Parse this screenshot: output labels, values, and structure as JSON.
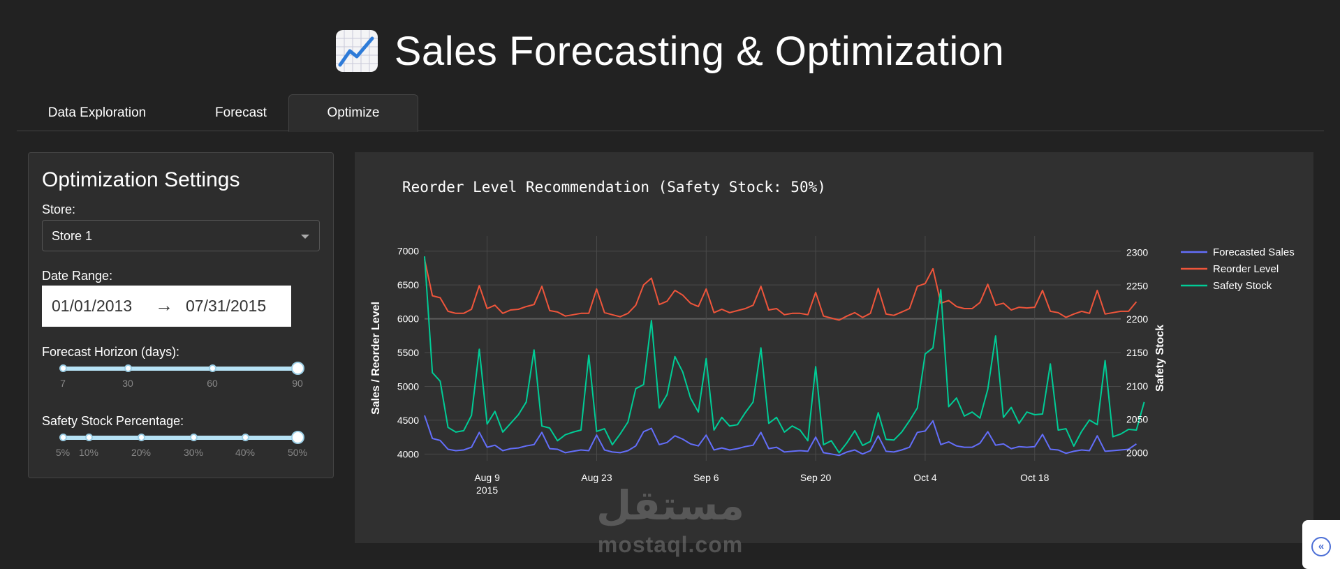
{
  "app": {
    "title": "Sales Forecasting & Optimization",
    "title_icon": "chart-increasing-emoji"
  },
  "tabs": [
    {
      "label": "Data Exploration",
      "active": false
    },
    {
      "label": "Forecast",
      "active": false
    },
    {
      "label": "Optimize",
      "active": true
    }
  ],
  "settings": {
    "title": "Optimization Settings",
    "store_label": "Store:",
    "store_value": "Store 1",
    "date_range_label": "Date Range:",
    "date_start": "01/01/2013",
    "date_arrow": "→",
    "date_end": "07/31/2015",
    "horizon_label": "Forecast Horizon (days):",
    "horizon_marks": [
      "7",
      "30",
      "60",
      "90"
    ],
    "horizon_value": "90",
    "safety_label": "Safety Stock Percentage:",
    "safety_marks": [
      "5%",
      "10%",
      "20%",
      "30%",
      "40%",
      "50%"
    ],
    "safety_value": "50%"
  },
  "colors": {
    "background": "#222222",
    "card": "#303030",
    "forecast": "#636efa",
    "reorder": "#ef553b",
    "safety": "#00cc96",
    "slider": "#b6e2f5"
  },
  "watermark": {
    "arabic": "مستقل",
    "latin": "mostaql.com"
  },
  "chart_data": {
    "type": "line",
    "title": "Reorder Level Recommendation (Safety Stock: 50%)",
    "ylabel": "Sales / Reorder Level",
    "y2label": "Safety Stock",
    "ylim": [
      3900,
      7100
    ],
    "y2lim": [
      1988,
      2312
    ],
    "yticks": [
      4000,
      4500,
      5000,
      5500,
      6000,
      6500,
      7000
    ],
    "y2ticks": [
      2000,
      2050,
      2100,
      2150,
      2200,
      2250,
      2300
    ],
    "xrange": [
      0,
      89
    ],
    "xticks": [
      {
        "pos": 8,
        "label": "Aug 9",
        "sub": "2015"
      },
      {
        "pos": 22,
        "label": "Aug 23",
        "sub": ""
      },
      {
        "pos": 36,
        "label": "Sep 6",
        "sub": ""
      },
      {
        "pos": 50,
        "label": "Sep 20",
        "sub": ""
      },
      {
        "pos": 64,
        "label": "Oct 4",
        "sub": ""
      },
      {
        "pos": 78,
        "label": "Oct 18",
        "sub": ""
      }
    ],
    "legend_position": "top-right",
    "series": [
      {
        "name": "Forecasted Sales",
        "axis": "y",
        "values": [
          4570,
          4230,
          4200,
          4070,
          4050,
          4060,
          4100,
          4320,
          4100,
          4130,
          4050,
          4080,
          4090,
          4120,
          4140,
          4320,
          4080,
          4070,
          4020,
          4040,
          4060,
          4050,
          4280,
          4060,
          4030,
          4020,
          4050,
          4120,
          4330,
          4380,
          4140,
          4170,
          4270,
          4220,
          4150,
          4120,
          4280,
          4060,
          4090,
          4060,
          4080,
          4110,
          4130,
          4320,
          4080,
          4100,
          4030,
          4040,
          4050,
          4040,
          4250,
          4020,
          4000,
          3980,
          4030,
          4060,
          4000,
          4050,
          4270,
          4040,
          4030,
          4060,
          4100,
          4320,
          4340,
          4490,
          4140,
          4180,
          4120,
          4100,
          4100,
          4160,
          4330,
          4130,
          4150,
          4080,
          4110,
          4100,
          4110,
          4290,
          4070,
          4060,
          4010,
          4040,
          4060,
          4050,
          4270,
          4040,
          4050,
          4060,
          4070,
          4150
        ]
      },
      {
        "name": "Reorder Level",
        "axis": "y",
        "values": [
          6880,
          6340,
          6310,
          6110,
          6080,
          6080,
          6140,
          6490,
          6150,
          6200,
          6080,
          6130,
          6140,
          6180,
          6210,
          6480,
          6120,
          6100,
          6040,
          6060,
          6080,
          6080,
          6440,
          6090,
          6060,
          6030,
          6080,
          6200,
          6500,
          6600,
          6210,
          6260,
          6420,
          6350,
          6230,
          6180,
          6440,
          6090,
          6140,
          6090,
          6120,
          6150,
          6200,
          6480,
          6130,
          6150,
          6060,
          6080,
          6080,
          6060,
          6390,
          6040,
          6010,
          5980,
          6040,
          6090,
          6020,
          6080,
          6450,
          6070,
          6050,
          6100,
          6150,
          6480,
          6520,
          6740,
          6230,
          6270,
          6180,
          6150,
          6150,
          6240,
          6510,
          6200,
          6230,
          6130,
          6170,
          6160,
          6170,
          6420,
          6110,
          6090,
          6020,
          6070,
          6110,
          6080,
          6420,
          6070,
          6090,
          6110,
          6110,
          6250
        ]
      },
      {
        "name": "Safety Stock",
        "axis": "y2",
        "values": [
          2294,
          2120,
          2107,
          2038,
          2031,
          2033,
          2056,
          2155,
          2043,
          2062,
          2031,
          2044,
          2057,
          2076,
          2154,
          2040,
          2037,
          2018,
          2027,
          2031,
          2034,
          2146,
          2032,
          2036,
          2012,
          2028,
          2046,
          2096,
          2102,
          2198,
          2067,
          2087,
          2144,
          2121,
          2082,
          2061,
          2141,
          2034,
          2053,
          2040,
          2042,
          2060,
          2076,
          2157,
          2044,
          2053,
          2031,
          2040,
          2034,
          2018,
          2129,
          2012,
          2018,
          2000,
          2015,
          2033,
          2011,
          2017,
          2060,
          2020,
          2019,
          2031,
          2048,
          2067,
          2148,
          2157,
          2244,
          2069,
          2082,
          2055,
          2061,
          2052,
          2095,
          2175,
          2053,
          2068,
          2044,
          2061,
          2057,
          2058,
          2133,
          2034,
          2036,
          2010,
          2032,
          2049,
          2042,
          2138,
          2024,
          2028,
          2035,
          2034,
          2076
        ]
      }
    ]
  }
}
